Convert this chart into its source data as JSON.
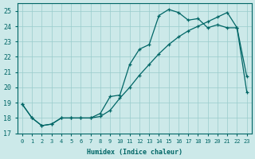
{
  "xlabel": "Humidex (Indice chaleur)",
  "bg_color": "#cce9e9",
  "line_color": "#006666",
  "grid_color": "#99cccc",
  "x_min": -0.5,
  "x_max": 23.5,
  "y_min": 17,
  "y_max": 25.5,
  "upper_x": [
    0,
    1,
    2,
    3,
    4,
    5,
    6,
    7,
    8,
    9,
    10,
    11,
    12,
    13,
    14,
    15,
    16,
    17,
    18,
    19,
    20,
    21,
    22,
    23
  ],
  "upper_y": [
    18.9,
    18.0,
    17.5,
    17.6,
    18.0,
    18.0,
    18.0,
    18.0,
    18.3,
    19.4,
    19.5,
    21.5,
    22.5,
    22.8,
    24.7,
    25.1,
    24.9,
    24.4,
    24.5,
    23.9,
    24.1,
    23.9,
    23.9,
    20.7
  ],
  "lower_x": [
    0,
    1,
    2,
    3,
    4,
    5,
    6,
    7,
    8,
    9,
    10,
    11,
    12,
    13,
    14,
    15,
    16,
    17,
    18,
    19,
    20,
    21,
    22,
    23
  ],
  "lower_y": [
    18.9,
    18.0,
    17.5,
    17.6,
    18.0,
    18.0,
    18.0,
    18.0,
    18.1,
    18.5,
    19.3,
    20.0,
    20.8,
    21.5,
    22.2,
    22.8,
    23.3,
    23.7,
    24.0,
    24.3,
    24.6,
    24.9,
    23.9,
    19.7
  ],
  "yticks": [
    17,
    18,
    19,
    20,
    21,
    22,
    23,
    24,
    25
  ],
  "xticks": [
    0,
    1,
    2,
    3,
    4,
    5,
    6,
    7,
    8,
    9,
    10,
    11,
    12,
    13,
    14,
    15,
    16,
    17,
    18,
    19,
    20,
    21,
    22,
    23
  ]
}
